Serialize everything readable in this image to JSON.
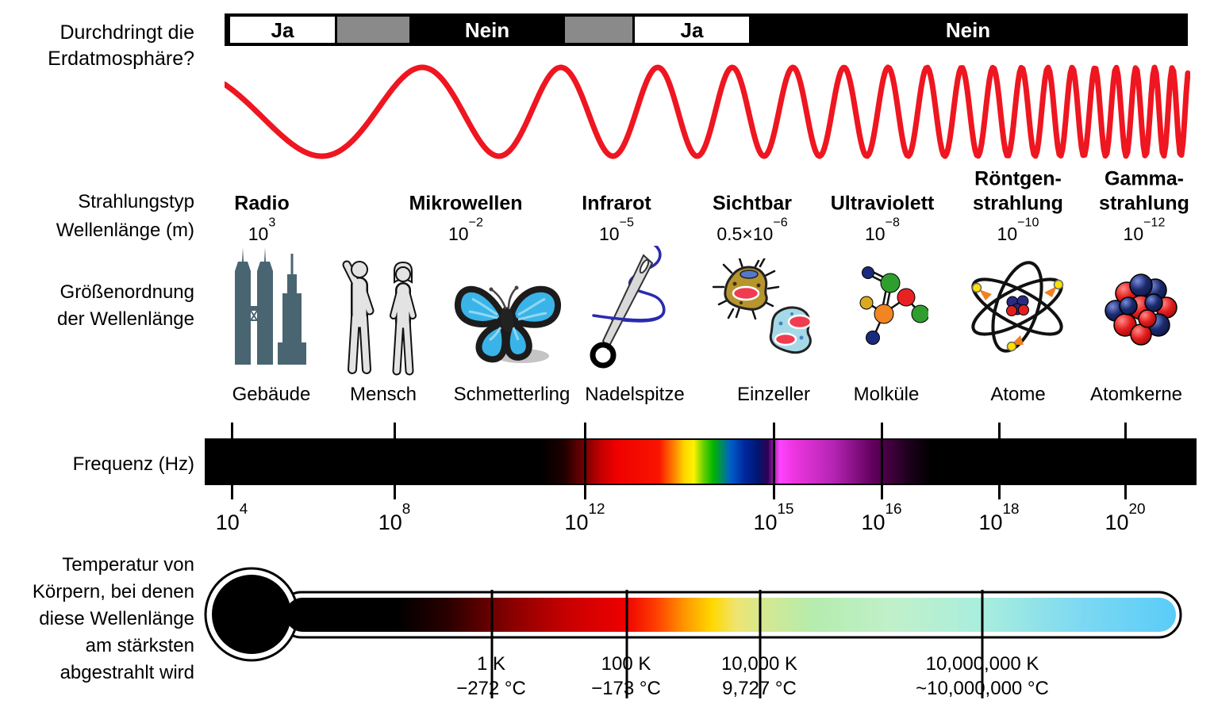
{
  "atmosphere": {
    "question": "Durchdringt die\nErdatmosphäre?",
    "segments": [
      {
        "label": "Ja",
        "type": "yes"
      },
      {
        "label": "",
        "type": "partial"
      },
      {
        "label": "Nein",
        "type": "no"
      },
      {
        "label": "",
        "type": "partial"
      },
      {
        "label": "Ja",
        "type": "yes"
      },
      {
        "label": "Nein",
        "type": "no"
      }
    ]
  },
  "wave": {
    "color": "#ee1620"
  },
  "spectrum": {
    "row_labels": {
      "type": "Strahlungstyp",
      "wavelength": "Wellenlänge (m)"
    },
    "types": [
      {
        "name": "Radio",
        "base": "10",
        "exp": "3"
      },
      {
        "name": "Mikrowellen",
        "base": "10",
        "exp": "−2"
      },
      {
        "name": "Infrarot",
        "base": "10",
        "exp": "−5"
      },
      {
        "name": "Sichtbar",
        "base": "0.5×10",
        "exp": "−6"
      },
      {
        "name": "Ultraviolett",
        "base": "10",
        "exp": "−8"
      },
      {
        "name": "Röntgen-\nstrahlung",
        "base": "10",
        "exp": "−10"
      },
      {
        "name": "Gamma-\nstrahlung",
        "base": "10",
        "exp": "−12"
      }
    ]
  },
  "sizes": {
    "row_label": "Größenordnung\nder Wellenlänge",
    "items": [
      {
        "label": "Gebäude",
        "icon": "buildings-icon"
      },
      {
        "label": "Mensch",
        "icon": "humans-icon"
      },
      {
        "label": "Schmetterling",
        "icon": "butterfly-icon"
      },
      {
        "label": "Nadelspitze",
        "icon": "needle-icon"
      },
      {
        "label": "Einzeller",
        "icon": "protozoa-icon"
      },
      {
        "label": "Molküle",
        "icon": "molecule-icon"
      },
      {
        "label": "Atome",
        "icon": "atom-icon"
      },
      {
        "label": "Atomkerne",
        "icon": "nucleus-icon"
      }
    ]
  },
  "frequency": {
    "row_label": "Frequenz (Hz)",
    "ticks": [
      {
        "base": "10",
        "exp": "4"
      },
      {
        "base": "10",
        "exp": "8"
      },
      {
        "base": "10",
        "exp": "12"
      },
      {
        "base": "10",
        "exp": "15"
      },
      {
        "base": "10",
        "exp": "16"
      },
      {
        "base": "10",
        "exp": "18"
      },
      {
        "base": "10",
        "exp": "20"
      }
    ]
  },
  "temperature": {
    "row_label": "Temperatur von\nKörpern, bei denen\ndiese Wellenlänge\nam stärksten\nabgestrahlt wird",
    "ticks": [
      {
        "kelvin": "1 K",
        "celsius": "−272 °C"
      },
      {
        "kelvin": "100 K",
        "celsius": "−173 °C"
      },
      {
        "kelvin": "10,000 K",
        "celsius": "9,727 °C"
      },
      {
        "kelvin": "10,000,000 K",
        "celsius": "~10,000,000 °C"
      }
    ]
  }
}
